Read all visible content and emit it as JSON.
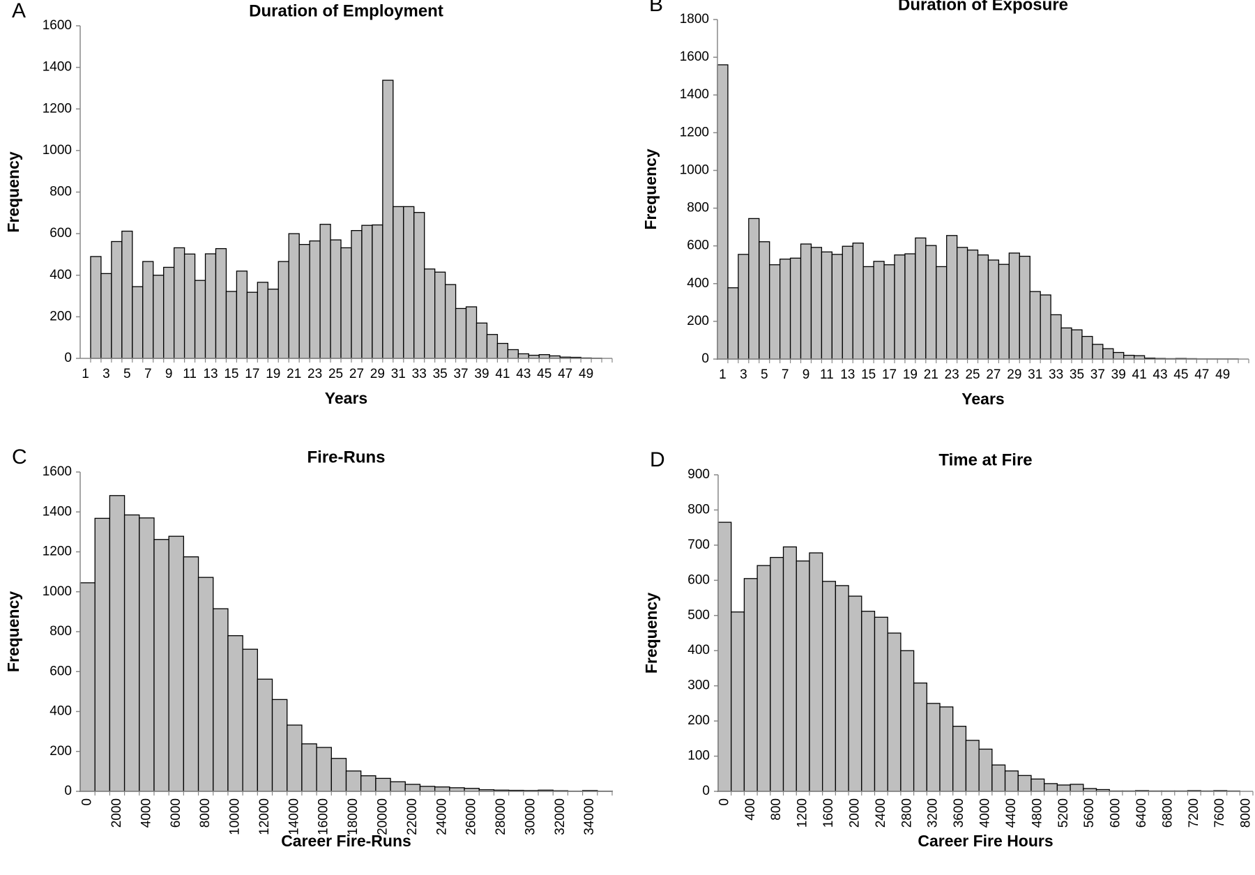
{
  "chart_data": [
    {
      "type": "bar",
      "panel": "A",
      "title": "Duration of Employment",
      "x_label": "Years",
      "y_label": "Frequency",
      "color": "#bfbfbf",
      "categories": [
        1,
        null,
        3,
        null,
        5,
        null,
        7,
        null,
        9,
        null,
        11,
        null,
        13,
        null,
        15,
        null,
        17,
        null,
        19,
        null,
        21,
        null,
        23,
        null,
        25,
        null,
        27,
        null,
        29,
        null,
        31,
        null,
        33,
        null,
        35,
        null,
        37,
        null,
        39,
        null,
        41,
        null,
        43,
        null,
        45,
        null,
        47,
        null,
        49,
        null,
        null
      ],
      "values": [
        0,
        490,
        408,
        562,
        612,
        345,
        466,
        400,
        438,
        532,
        502,
        375,
        503,
        528,
        322,
        420,
        318,
        366,
        333,
        466,
        600,
        548,
        565,
        645,
        570,
        532,
        615,
        640,
        642,
        1338,
        730,
        730,
        702,
        430,
        415,
        355,
        240,
        248,
        170,
        115,
        72,
        42,
        22,
        15,
        18,
        12,
        6,
        5,
        2,
        1,
        0
      ],
      "ylim": [
        0,
        1600
      ],
      "yticks": [
        0,
        200,
        400,
        600,
        800,
        1000,
        1200,
        1400,
        1600
      ]
    },
    {
      "type": "bar",
      "panel": "B",
      "title": "Duration of Exposure",
      "x_label": "Years",
      "y_label": "Frequency",
      "color": "#bfbfbf",
      "categories": [
        1,
        null,
        3,
        null,
        5,
        null,
        7,
        null,
        9,
        null,
        11,
        null,
        13,
        null,
        15,
        null,
        17,
        null,
        19,
        null,
        21,
        null,
        23,
        null,
        25,
        null,
        27,
        null,
        29,
        null,
        31,
        null,
        33,
        null,
        35,
        null,
        37,
        null,
        39,
        null,
        41,
        null,
        43,
        null,
        45,
        null,
        47,
        null,
        49,
        null,
        null
      ],
      "values": [
        1560,
        378,
        555,
        745,
        622,
        500,
        530,
        535,
        610,
        592,
        568,
        555,
        598,
        615,
        490,
        518,
        500,
        552,
        558,
        642,
        602,
        490,
        655,
        592,
        578,
        552,
        525,
        502,
        562,
        545,
        358,
        340,
        235,
        165,
        155,
        120,
        78,
        55,
        35,
        20,
        18,
        5,
        3,
        2,
        3,
        2,
        1,
        1,
        1,
        1,
        0
      ],
      "ylim": [
        0,
        1800
      ],
      "yticks": [
        0,
        200,
        400,
        600,
        800,
        1000,
        1200,
        1400,
        1600,
        1800
      ]
    },
    {
      "type": "bar",
      "panel": "C",
      "title": "Fire-Runs",
      "x_label": "Career Fire-Runs",
      "y_label": "Frequency",
      "color": "#bfbfbf",
      "categories": [
        0,
        null,
        2000,
        null,
        4000,
        null,
        6000,
        null,
        8000,
        null,
        10000,
        null,
        12000,
        null,
        14000,
        null,
        16000,
        null,
        18000,
        null,
        20000,
        null,
        22000,
        null,
        24000,
        null,
        26000,
        null,
        28000,
        null,
        30000,
        null,
        32000,
        null,
        34000,
        null
      ],
      "values": [
        1045,
        1368,
        1482,
        1385,
        1370,
        1262,
        1278,
        1175,
        1072,
        915,
        780,
        712,
        562,
        460,
        332,
        238,
        220,
        165,
        102,
        78,
        65,
        48,
        35,
        25,
        22,
        18,
        15,
        8,
        6,
        5,
        4,
        6,
        3,
        1,
        4,
        1
      ],
      "ylim": [
        0,
        1600
      ],
      "yticks": [
        0,
        200,
        400,
        600,
        800,
        1000,
        1200,
        1400,
        1600
      ]
    },
    {
      "type": "bar",
      "panel": "D",
      "title": "Time at Fire",
      "x_label": "Career Fire Hours",
      "y_label": "Frequency",
      "color": "#bfbfbf",
      "categories": [
        0,
        null,
        400,
        null,
        800,
        null,
        1200,
        null,
        1600,
        null,
        2000,
        null,
        2400,
        null,
        2800,
        null,
        3200,
        null,
        3600,
        null,
        4000,
        null,
        4400,
        null,
        4800,
        null,
        5200,
        null,
        5600,
        null,
        6000,
        null,
        6400,
        null,
        6800,
        null,
        7200,
        null,
        7600,
        null,
        8000
      ],
      "values": [
        765,
        510,
        605,
        642,
        665,
        695,
        655,
        678,
        597,
        585,
        555,
        512,
        495,
        450,
        400,
        308,
        250,
        240,
        185,
        145,
        120,
        75,
        58,
        45,
        35,
        22,
        18,
        20,
        8,
        5,
        1,
        1,
        2,
        1,
        1,
        1,
        2,
        1,
        2,
        1,
        0
      ],
      "ylim": [
        0,
        900
      ],
      "yticks": [
        0,
        100,
        200,
        300,
        400,
        500,
        600,
        700,
        800,
        900
      ]
    }
  ]
}
